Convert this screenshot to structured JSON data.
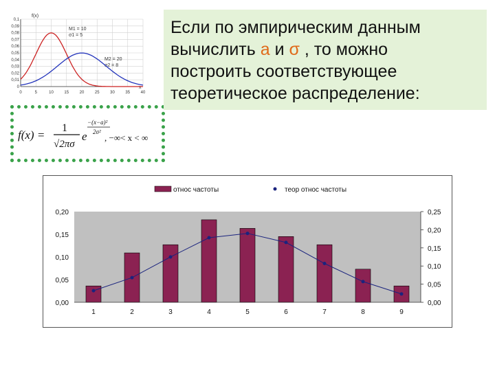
{
  "slide": {
    "text_line1": "Если по эмпирическим данным",
    "text_line2_a": "вычислить ",
    "text_line2_sym_a": "a",
    "text_line2_b": " и ",
    "text_line2_sym_sigma": "σ",
    "text_line2_c": " , то можно",
    "text_line3": "построить соответствующее",
    "text_line4": "теоретическое распределение:",
    "accent_color": "#e06a1a",
    "panel_color": "#e4f2d8"
  },
  "formula": {
    "lhs": "f(x) =",
    "numerator": "1",
    "denominator": "√2πσ",
    "base": "e",
    "exp_numerator": "−(x−a)²",
    "exp_denominator": "2σ²",
    "domain": ", −∞< x < ∞",
    "border_color": "#3aa24a"
  },
  "chart_data": [
    {
      "type": "line",
      "x_ticks": [
        "0",
        "5",
        "10",
        "15",
        "20",
        "25",
        "30",
        "35",
        "40"
      ],
      "xlabel": "x",
      "ylabel": "f(x)",
      "y_ticks": [
        "0,1",
        "0,09",
        "0,08",
        "0,07",
        "0,06",
        "0,05",
        "0,04",
        "0,03",
        "0,02",
        "0,01",
        "0"
      ],
      "xlim": [
        0,
        40
      ],
      "ylim": [
        0,
        0.1
      ],
      "series": [
        {
          "color": "#cc2222",
          "mean": 10,
          "sigma": 5
        },
        {
          "color": "#2233bb",
          "mean": 20,
          "sigma": 8
        }
      ],
      "annotations": [
        {
          "lines": [
            "M1 = 10",
            "σ1 = 5"
          ],
          "near": "top"
        },
        {
          "lines": [
            "M2 = 20",
            "σ2 = 8"
          ],
          "near": "right"
        }
      ],
      "grid": true
    },
    {
      "type": "bar",
      "categories": [
        "1",
        "2",
        "3",
        "4",
        "5",
        "6",
        "7",
        "8",
        "9"
      ],
      "series": [
        {
          "name": "относ частоты",
          "values": [
            0.036,
            0.109,
            0.127,
            0.182,
            0.163,
            0.145,
            0.127,
            0.073,
            0.036
          ],
          "color": "#8b2252",
          "kind": "bar",
          "axis": "left"
        },
        {
          "name": "теор относ частоты",
          "values": [
            0.032,
            0.068,
            0.125,
            0.178,
            0.19,
            0.165,
            0.107,
            0.057,
            0.023
          ],
          "color": "#1a237e",
          "kind": "line",
          "axis": "right"
        }
      ],
      "y_left_ticks": [
        "0,20",
        "0,15",
        "0,10",
        "0,05",
        "0,00"
      ],
      "y_right_ticks": [
        "0,25",
        "0,20",
        "0,15",
        "0,10",
        "0,05",
        "0,00"
      ],
      "ylim_left": [
        0,
        0.2
      ],
      "ylim_right": [
        0,
        0.25
      ],
      "legend": "top",
      "plot_bg": "#c0c0c0"
    }
  ]
}
